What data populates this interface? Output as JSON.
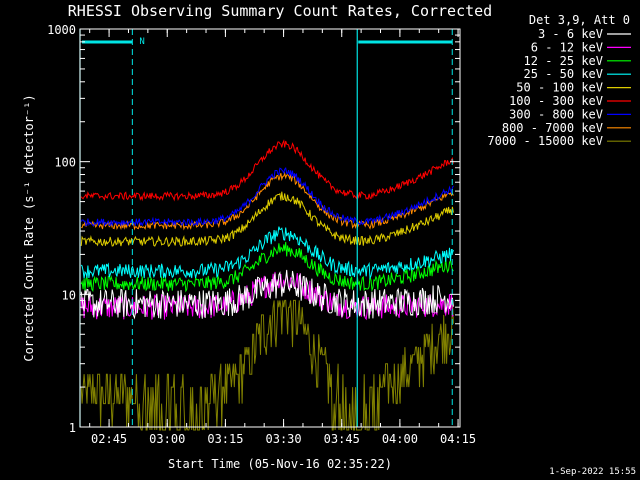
{
  "chart_data": {
    "type": "line",
    "title": "RHESSI Observing Summary Count Rates, Corrected",
    "xlabel": "Start Time (05-Nov-16 02:35:22)",
    "ylabel": "Corrected Count Rate (s⁻¹ detector⁻¹)",
    "yscale": "log",
    "ylim": [
      1,
      1000
    ],
    "xlim_minutes": [
      2.5,
      100.5
    ],
    "x_ticks": [
      {
        "label": "02:45",
        "minutes": 10
      },
      {
        "label": "03:00",
        "minutes": 25
      },
      {
        "label": "03:15",
        "minutes": 40
      },
      {
        "label": "03:30",
        "minutes": 55
      },
      {
        "label": "03:45",
        "minutes": 70
      },
      {
        "label": "04:00",
        "minutes": 85
      },
      {
        "label": "04:15",
        "minutes": 100
      }
    ],
    "y_ticks": [
      {
        "label": "1",
        "value": 1
      },
      {
        "label": "10",
        "value": 10
      },
      {
        "label": "100",
        "value": 100
      },
      {
        "label": "1000",
        "value": 1000
      }
    ],
    "legend_header": "Det 3,9, Att 0",
    "legend_placement": "right",
    "series": [
      {
        "name": "3 - 6 keV",
        "color": "#ffffff",
        "base": 8.5,
        "peak": 12,
        "end": 9.5,
        "noise": 0.12
      },
      {
        "name": "6 - 12 keV",
        "color": "#ff00ff",
        "base": 8,
        "peak": 13,
        "end": 8.5,
        "noise": 0.1
      },
      {
        "name": "12 - 25 keV",
        "color": "#00ff00",
        "base": 12,
        "peak": 22,
        "end": 17,
        "noise": 0.08
      },
      {
        "name": "25 - 50 keV",
        "color": "#00ffff",
        "base": 15,
        "peak": 29,
        "end": 20,
        "noise": 0.08
      },
      {
        "name": "50 - 100 keV",
        "color": "#ddcc00",
        "base": 25,
        "peak": 55,
        "end": 43,
        "noise": 0.05
      },
      {
        "name": "100 - 300 keV",
        "color": "#ff0000",
        "base": 55,
        "peak": 135,
        "end": 102,
        "noise": 0.04
      },
      {
        "name": "300 - 800 keV",
        "color": "#0000ff",
        "base": 35,
        "peak": 85,
        "end": 62,
        "noise": 0.04
      },
      {
        "name": "800 - 7000 keV",
        "color": "#ff8c00",
        "base": 33,
        "peak": 78,
        "end": 58,
        "noise": 0.04
      },
      {
        "name": "7000 - 15000 keV",
        "color": "#808000",
        "base": 1.8,
        "peak": 8,
        "end": 6,
        "noise": 0.3
      }
    ],
    "markers": {
      "night_label": "N",
      "night_start_minutes": 16,
      "night_end_minutes": 98.5,
      "segment_lines_minutes": [
        2.5,
        74
      ]
    },
    "colors": {
      "background": "#000000",
      "axis": "#ffffff",
      "marker": "#00e5e5"
    }
  },
  "footer": {
    "timestamp": "1-Sep-2022 15:55"
  }
}
